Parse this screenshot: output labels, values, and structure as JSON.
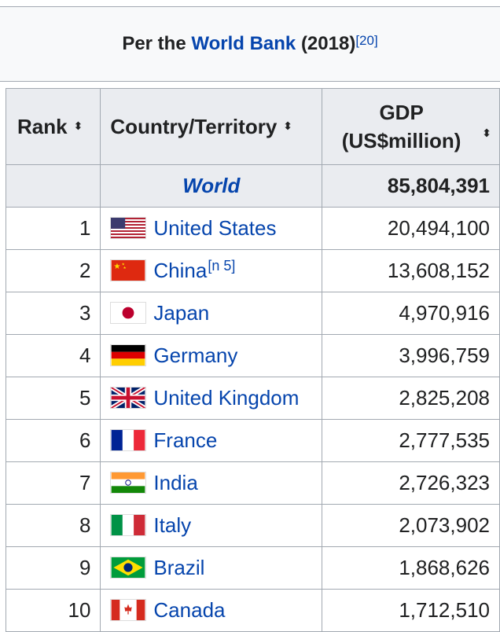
{
  "caption": {
    "prefix": "Per the ",
    "link": "World Bank",
    "suffix": " (2018)",
    "ref": "[20]"
  },
  "headers": {
    "rank": "Rank",
    "country": "Country/Territory",
    "gdp_line1": "GDP",
    "gdp_line2": "(US$million)",
    "sort_icon": "⬍"
  },
  "world": {
    "name": "World",
    "gdp": "85,804,391"
  },
  "rows": [
    {
      "rank": "1",
      "country": "United States",
      "gdp": "20,494,100",
      "note": "",
      "flag": "us-flag-icon"
    },
    {
      "rank": "2",
      "country": "China",
      "gdp": "13,608,152",
      "note": "[n 5]",
      "flag": "china-flag-icon"
    },
    {
      "rank": "3",
      "country": "Japan",
      "gdp": "4,970,916",
      "note": "",
      "flag": "japan-flag-icon"
    },
    {
      "rank": "4",
      "country": "Germany",
      "gdp": "3,996,759",
      "note": "",
      "flag": "germany-flag-icon"
    },
    {
      "rank": "5",
      "country": "United Kingdom",
      "gdp": "2,825,208",
      "note": "",
      "flag": "uk-flag-icon"
    },
    {
      "rank": "6",
      "country": "France",
      "gdp": "2,777,535",
      "note": "",
      "flag": "france-flag-icon"
    },
    {
      "rank": "7",
      "country": "India",
      "gdp": "2,726,323",
      "note": "",
      "flag": "india-flag-icon"
    },
    {
      "rank": "8",
      "country": "Italy",
      "gdp": "2,073,902",
      "note": "",
      "flag": "italy-flag-icon"
    },
    {
      "rank": "9",
      "country": "Brazil",
      "gdp": "1,868,626",
      "note": "",
      "flag": "brazil-flag-icon"
    },
    {
      "rank": "10",
      "country": "Canada",
      "gdp": "1,712,510",
      "note": "",
      "flag": "canada-flag-icon"
    }
  ],
  "colors": {
    "link": "#0645ad",
    "header_bg": "#eaecf0",
    "border": "#a2a9b1"
  }
}
